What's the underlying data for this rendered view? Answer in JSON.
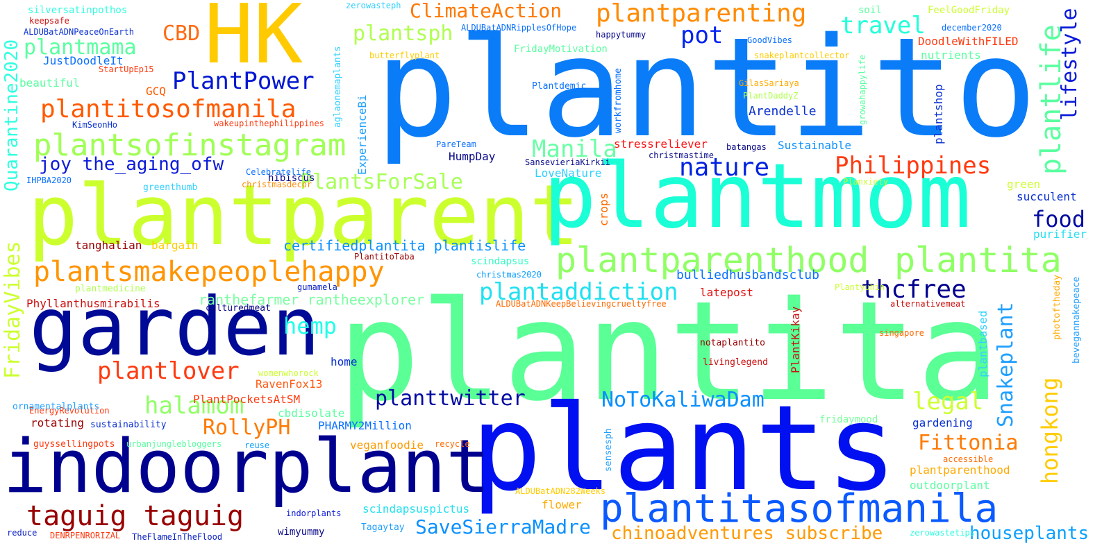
{
  "word_cloud": {
    "words": [
      {
        "text": "plantito",
        "color": "#0a7cf8"
      },
      {
        "text": "plantita",
        "color": "#5aff96"
      },
      {
        "text": "plants",
        "color": "#0010f0"
      },
      {
        "text": "plantparent",
        "color": "#ccff2e"
      },
      {
        "text": "plantmom",
        "color": "#1affd5"
      },
      {
        "text": "garden",
        "color": "#000a96"
      },
      {
        "text": "indoorplant",
        "color": "#00008f"
      },
      {
        "text": "HK",
        "color": "#ffcb00"
      },
      {
        "text": "plantparenthood",
        "color": "#90ff66"
      },
      {
        "text": "plantita",
        "color": "#90ff66"
      },
      {
        "text": "plantitasofmanila",
        "color": "#0a5aff"
      },
      {
        "text": "plantsofinstagram",
        "color": "#a0ff56"
      },
      {
        "text": "plantsmakepeoplehappy",
        "color": "#ff9400"
      },
      {
        "text": "taguig taguig",
        "color": "#990000"
      },
      {
        "text": "plantitosofmanila",
        "color": "#ff5a00"
      },
      {
        "text": "plantparenting",
        "color": "#ff8a00"
      },
      {
        "text": "nature",
        "color": "#0022e0"
      },
      {
        "text": "Philippines",
        "color": "#ff3a10"
      },
      {
        "text": "Manila",
        "color": "#6affa6"
      },
      {
        "text": "ClimateAction",
        "color": "#ff7800"
      },
      {
        "text": "PlantPower",
        "color": "#0016d0"
      },
      {
        "text": "plantmama",
        "color": "#5affa0"
      },
      {
        "text": "plantsph",
        "color": "#b0ff50"
      },
      {
        "text": "pot",
        "color": "#0022f0"
      },
      {
        "text": "travel",
        "color": "#22ffd8"
      },
      {
        "text": "CBD",
        "color": "#ff6a10"
      },
      {
        "text": "plantaddiction",
        "color": "#20e0f0"
      },
      {
        "text": "thcfree",
        "color": "#00008f"
      },
      {
        "text": "hemp",
        "color": "#20ffe8"
      },
      {
        "text": "plantlover",
        "color": "#ff3a10"
      },
      {
        "text": "halamom",
        "color": "#90ff66"
      },
      {
        "text": "RollyPH",
        "color": "#ff7a00"
      },
      {
        "text": "planttwitter",
        "color": "#000aa0"
      },
      {
        "text": "NoToKaliwaDam",
        "color": "#0a90ff"
      },
      {
        "text": "SaveSierraMadre",
        "color": "#0a90ff"
      },
      {
        "text": "Fittonia",
        "color": "#ff7a00"
      },
      {
        "text": "legal",
        "color": "#ccff30"
      },
      {
        "text": "food",
        "color": "#000aa0"
      },
      {
        "text": "PlantsForSale",
        "color": "#a8ff58"
      },
      {
        "text": "joy the_aging_ofw",
        "color": "#0a1ad8"
      },
      {
        "text": "chinoadventures subscribe",
        "color": "#ff9a00"
      },
      {
        "text": "houseplants",
        "color": "#0aa0ff"
      },
      {
        "text": "certifiedplantita plantislife",
        "color": "#0a90ff"
      },
      {
        "text": "ranthefarmer rantheexplorer",
        "color": "#7affa0"
      },
      {
        "text": "bulliedhusbandsclub",
        "color": "#0a70ff"
      },
      {
        "text": "Arendelle",
        "color": "#0a30d0"
      },
      {
        "text": "Sustainable",
        "color": "#0a90ff"
      },
      {
        "text": "stressreliever",
        "color": "#ff1010"
      },
      {
        "text": "HumpDay",
        "color": "#0a0a8a"
      },
      {
        "text": "LoveNature",
        "color": "#30d0ff"
      },
      {
        "text": "latepost",
        "color": "#e01010"
      },
      {
        "text": "Phyllanthusmirabilis",
        "color": "#cc1010"
      },
      {
        "text": "hibiscus",
        "color": "#0a0a8a"
      },
      {
        "text": "tanghalian",
        "color": "#990000"
      },
      {
        "text": "bargain",
        "color": "#ffcc00"
      },
      {
        "text": "PlantitoTaba",
        "color": "#990000"
      },
      {
        "text": "scindapsus",
        "color": "#30ffc0"
      },
      {
        "text": "christmas2020",
        "color": "#0aa0ff"
      },
      {
        "text": "gumamela",
        "color": "#0a20c0"
      },
      {
        "text": "culturedmeat",
        "color": "#0a0a8a"
      },
      {
        "text": "home",
        "color": "#0a30d0"
      },
      {
        "text": "RavenFox13",
        "color": "#ff5a10"
      },
      {
        "text": "PlantPocketsAtSM",
        "color": "#ff3a10"
      },
      {
        "text": "cbdisolate",
        "color": "#5affa0"
      },
      {
        "text": "PHARMY2Million",
        "color": "#0a70ff"
      },
      {
        "text": "veganfoodie",
        "color": "#ff9a00"
      },
      {
        "text": "scindapsuspictus",
        "color": "#20e0f0"
      },
      {
        "text": "flower",
        "color": "#ffaa00"
      },
      {
        "text": "wimyummy",
        "color": "#0a0a8a"
      },
      {
        "text": "indorplants",
        "color": "#0a1ad8"
      },
      {
        "text": "Tagaytay",
        "color": "#20a0ff"
      },
      {
        "text": "reduce",
        "color": "#0a20c0"
      },
      {
        "text": "DENRPENRORIZAL",
        "color": "#ff3a10"
      },
      {
        "text": "TheFlameInTheFlood",
        "color": "#0a20c0"
      },
      {
        "text": "reuse",
        "color": "#0aa0ff"
      },
      {
        "text": "rotating",
        "color": "#990000"
      },
      {
        "text": "sustainability",
        "color": "#0a30d0"
      },
      {
        "text": "guyssellingpots",
        "color": "#ff3a10"
      },
      {
        "text": "urbanjunglebloggers",
        "color": "#5affa0"
      },
      {
        "text": "recycle",
        "color": "#ff6a00"
      },
      {
        "text": "gardening",
        "color": "#0a30d0"
      },
      {
        "text": "fridaymood",
        "color": "#7affa0"
      },
      {
        "text": "accessible",
        "color": "#ff6a00"
      },
      {
        "text": "plantparenthood",
        "color": "#ffaa00"
      },
      {
        "text": "outdoorplant",
        "color": "#5affa0"
      },
      {
        "text": "ALDUBatADN282Weeks",
        "color": "#ffcc00"
      },
      {
        "text": "zerowastetips",
        "color": "#30ffe0"
      },
      {
        "text": "notaplantito",
        "color": "#990000"
      },
      {
        "text": "livinglegend",
        "color": "#cc1010"
      },
      {
        "text": "singapore",
        "color": "#ff6a00"
      },
      {
        "text": "alternativemeat",
        "color": "#cc1010"
      },
      {
        "text": "Plantyuhin",
        "color": "#ccff30"
      },
      {
        "text": "ALDUBatADNKeepBelievingcrueltyfree",
        "color": "#ff6a00"
      },
      {
        "text": "plantmedicine",
        "color": "#b0ff50"
      },
      {
        "text": "EnergyRevolution",
        "color": "#ff3a10"
      },
      {
        "text": "ornamentalplants",
        "color": "#20a0ff"
      },
      {
        "text": "womenwhorock",
        "color": "#ccff30"
      },
      {
        "text": "IHPBA2020",
        "color": "#0a70ff"
      },
      {
        "text": "greenthumb",
        "color": "#30d0ff"
      },
      {
        "text": "christmasdecor",
        "color": "#ff8a00"
      },
      {
        "text": "Celebratelife",
        "color": "#0a70ff"
      },
      {
        "text": "KimSeonHo",
        "color": "#0a30d0"
      },
      {
        "text": "wakeupinthephilippines",
        "color": "#ff3a10"
      },
      {
        "text": "PareTeam",
        "color": "#0a70ff"
      },
      {
        "text": "SansevieriaKirkii",
        "color": "#0a0a8a"
      },
      {
        "text": "christmastime",
        "color": "#0a0a8a"
      },
      {
        "text": "batangas",
        "color": "#0a0a8a"
      },
      {
        "text": "Plantdemic",
        "color": "#0a70ff"
      },
      {
        "text": "PlantDaddyZ",
        "color": "#b0ff50"
      },
      {
        "text": "GilasSariaya",
        "color": "#ffaa00"
      },
      {
        "text": "GoodVibes",
        "color": "#0a70ff"
      },
      {
        "text": "FridayMotivation",
        "color": "#5affa0"
      },
      {
        "text": "butterflyplant",
        "color": "#ffcc00"
      },
      {
        "text": "happytummy",
        "color": "#0a0a8a"
      },
      {
        "text": "snakeplantcollector",
        "color": "#ffcc00"
      },
      {
        "text": "nutrients",
        "color": "#5affa0"
      },
      {
        "text": "DoodleWithFILED",
        "color": "#ff3a10"
      },
      {
        "text": "december2020",
        "color": "#0a70ff"
      },
      {
        "text": "FeelGoodFriday",
        "color": "#ccff30"
      },
      {
        "text": "soil",
        "color": "#5affa0"
      },
      {
        "text": "zerowasteph",
        "color": "#30d0ff"
      },
      {
        "text": "ALDUBatADNRipplesOfHope",
        "color": "#0a70ff"
      },
      {
        "text": "silversatinpothos",
        "color": "#30ffe0"
      },
      {
        "text": "keepsafe",
        "color": "#cc1010"
      },
      {
        "text": "ALDUBatADNPeaceOnEarth",
        "color": "#0a30d0"
      },
      {
        "text": "JustDoodleIt",
        "color": "#0a70ff"
      },
      {
        "text": "StartUpEp15",
        "color": "#ff3a10"
      },
      {
        "text": "beautiful",
        "color": "#5affa0"
      },
      {
        "text": "GCQ",
        "color": "#ff5a00"
      },
      {
        "text": "green",
        "color": "#ccff30"
      },
      {
        "text": "succulent",
        "color": "#0a30d0"
      },
      {
        "text": "purifier",
        "color": "#20e0f0"
      },
      {
        "text": "Planxiety",
        "color": "#ccff30"
      },
      {
        "text": "Quarantine2020",
        "color": "#30ffe0"
      },
      {
        "text": "FridayVibes",
        "color": "#ccff30"
      },
      {
        "text": "plantlife",
        "color": "#5affa0"
      },
      {
        "text": "lifestyle",
        "color": "#0a1ad8"
      },
      {
        "text": "hongkong",
        "color": "#ffcc00"
      },
      {
        "text": "Snakeplant",
        "color": "#20a0ff"
      },
      {
        "text": "plantbased",
        "color": "#30d0ff"
      },
      {
        "text": "photoftheday",
        "color": "#ffaa00"
      },
      {
        "text": "bevegannakepeace",
        "color": "#20a0ff"
      },
      {
        "text": "plantshop",
        "color": "#0a30d0"
      },
      {
        "text": "growahappylife",
        "color": "#5affa0"
      },
      {
        "text": "workfromhome",
        "color": "#0a70ff"
      },
      {
        "text": "aglaonemaplants",
        "color": "#30d0ff"
      },
      {
        "text": "ExperienceBi",
        "color": "#20a0ff"
      },
      {
        "text": "crops",
        "color": "#ff6a00"
      },
      {
        "text": "PlantKikay",
        "color": "#cc1010"
      },
      {
        "text": "sensesph",
        "color": "#20a0ff"
      }
    ]
  }
}
